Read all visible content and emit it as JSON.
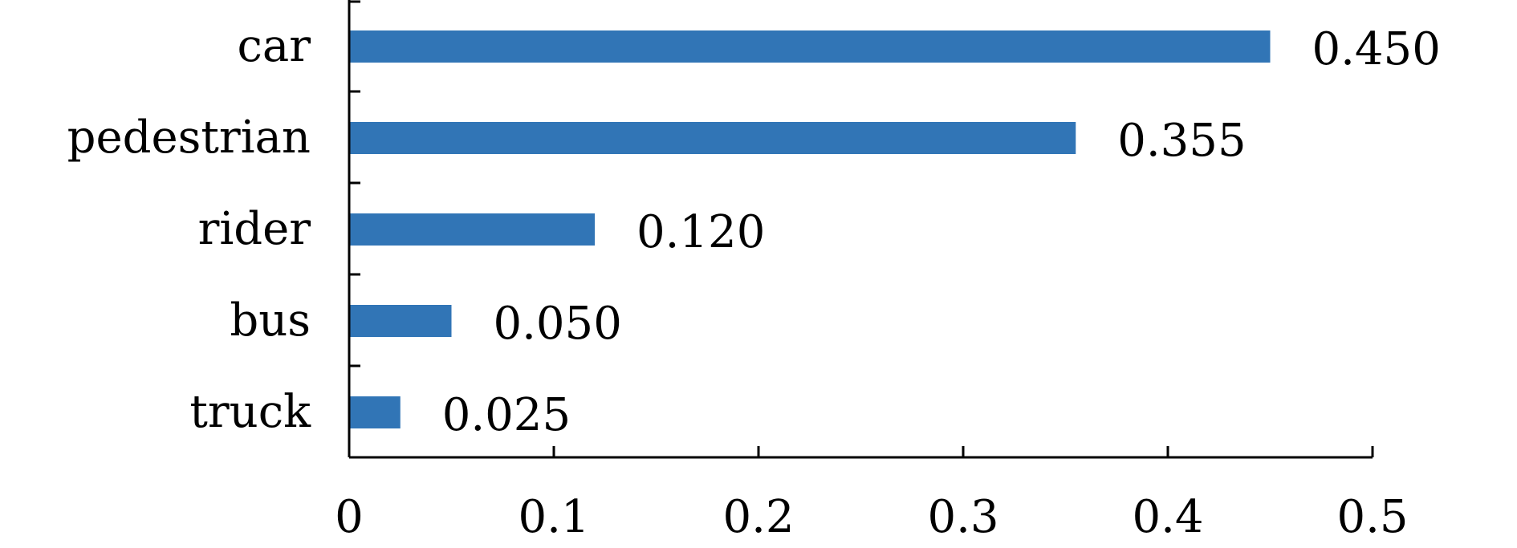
{
  "chart_data": {
    "type": "bar",
    "orientation": "horizontal",
    "categories": [
      "car",
      "pedestrian",
      "rider",
      "bus",
      "truck"
    ],
    "values": [
      0.45,
      0.355,
      0.12,
      0.05,
      0.025
    ],
    "value_labels": [
      "0.450",
      "0.355",
      "0.120",
      "0.050",
      "0.025"
    ],
    "x_ticks": [
      0,
      0.1,
      0.2,
      0.3,
      0.4,
      0.5
    ],
    "x_tick_labels": [
      "0",
      "0.1",
      "0.2",
      "0.3",
      "0.4",
      "0.5"
    ],
    "xlim": [
      0,
      0.5
    ],
    "title": "",
    "xlabel": "",
    "ylabel": "",
    "grid": false,
    "legend": "none",
    "bar_color": "#3175b6"
  }
}
